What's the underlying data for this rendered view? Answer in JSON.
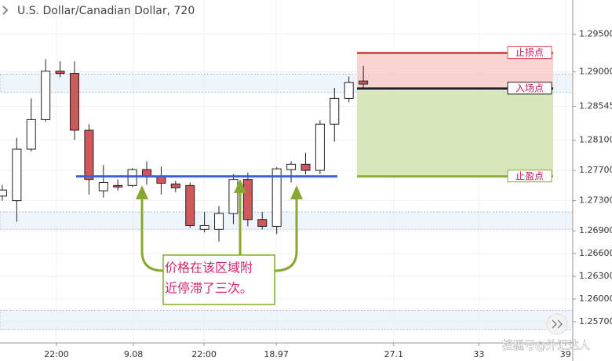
{
  "chart_data": {
    "type": "candlestick",
    "title": "U.S. Dollar/Canadian Dollar, 720",
    "x": [
      0,
      1,
      2,
      3,
      4,
      5,
      6,
      7,
      8,
      9,
      10,
      11,
      12,
      13,
      14,
      15,
      16,
      17,
      18,
      19,
      20,
      21,
      22,
      23,
      24,
      25
    ],
    "open": [
      1.2736,
      1.273,
      1.2798,
      1.2837,
      1.2901,
      1.2898,
      1.2823,
      1.2743,
      1.275,
      1.275,
      1.2771,
      1.2762,
      1.2752,
      1.275,
      1.2692,
      1.2692,
      1.2713,
      1.2758,
      1.2705,
      1.2696,
      1.2771,
      1.2778,
      1.277,
      1.2831,
      1.2865,
      1.2888
    ],
    "high": [
      1.2751,
      1.2813,
      1.2865,
      1.2917,
      1.2914,
      1.2914,
      1.2831,
      1.2777,
      1.2758,
      1.2773,
      1.2782,
      1.2775,
      1.2756,
      1.2754,
      1.2715,
      1.2723,
      1.2765,
      1.2767,
      1.2715,
      1.2774,
      1.2782,
      1.2793,
      1.2836,
      1.2879,
      1.2894,
      1.2908
    ],
    "low": [
      1.273,
      1.2702,
      1.2795,
      1.2834,
      1.2893,
      1.281,
      1.2738,
      1.2734,
      1.2743,
      1.2748,
      1.2751,
      1.2738,
      1.2741,
      1.2694,
      1.2688,
      1.2676,
      1.2699,
      1.2696,
      1.2692,
      1.2686,
      1.2754,
      1.2765,
      1.2765,
      1.2808,
      1.286,
      1.2879
    ],
    "close": [
      1.2744,
      1.2798,
      1.2837,
      1.2901,
      1.2898,
      1.2823,
      1.2758,
      1.2754,
      1.2748,
      1.2771,
      1.2762,
      1.2753,
      1.2747,
      1.2697,
      1.2697,
      1.2713,
      1.2758,
      1.2705,
      1.2696,
      1.2772,
      1.2778,
      1.277,
      1.2831,
      1.2865,
      1.2886,
      1.2884
    ],
    "up_color": "#ffffff",
    "down_color": "#d0575a",
    "xlim": [
      -0.16,
      39.5
    ],
    "ylim": [
      1.2542,
      1.2995
    ],
    "xticks": [
      {
        "value": 3.75,
        "label": "22:00"
      },
      9.08,
      {
        "value": 13.97,
        "label": "22:00"
      },
      18.97,
      27.1,
      33,
      39
    ],
    "xtick_labels_numeric": false,
    "yticks": [
      {
        "value": 1.295,
        "label": "1.29500"
      },
      {
        "value": 1.29,
        "label": "1.29000"
      },
      1.28545,
      {
        "value": 1.281,
        "label": "1.28100"
      },
      {
        "value": 1.277,
        "label": "1.27700"
      },
      {
        "value": 1.273,
        "label": "1.27300"
      },
      {
        "value": 1.269,
        "label": "1.26900"
      },
      {
        "value": 1.266,
        "label": "1.26600"
      },
      {
        "value": 1.263,
        "label": "1.26300"
      },
      {
        "value": 1.26,
        "label": "1.26000"
      },
      {
        "value": 1.257,
        "label": "1.25700"
      }
    ],
    "grid": true,
    "zones": [
      [
        1.2873,
        1.2897
      ],
      [
        1.2692,
        1.2715
      ],
      [
        1.256,
        1.2585
      ]
    ],
    "support": 1.2762,
    "levels": [
      {
        "name": "止损点",
        "value": 1.2925,
        "color": "#d9534f"
      },
      {
        "name": "入场点",
        "value": 1.2878,
        "color": "#222222"
      },
      {
        "name": "止盈点",
        "value": 1.2762,
        "color": "#8aac3c"
      }
    ],
    "annotation": [
      "价格在该区域附",
      "近停滞了三次。"
    ],
    "watermark": "搜狐号@外汇达人"
  }
}
